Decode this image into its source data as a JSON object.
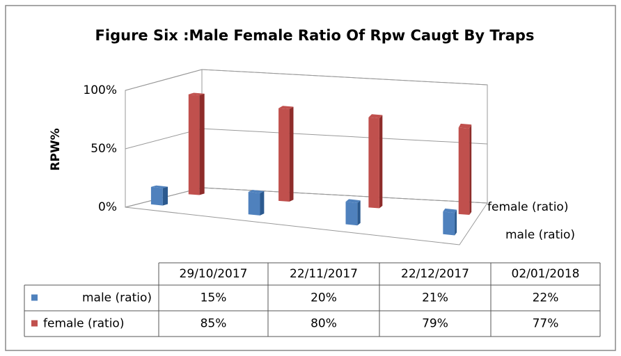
{
  "chart_data": {
    "type": "bar",
    "title": "Figure Six :Male Female Ratio Of Rpw Caugt By Traps",
    "y_label": "RPW%",
    "categories": [
      "29/10/2017",
      "22/11/2017",
      "22/12/2017",
      "02/01/2018"
    ],
    "series": [
      {
        "name": "male (ratio)",
        "color": "#4f81bd",
        "values": [
          15,
          20,
          21,
          22
        ],
        "value_labels": [
          "15%",
          "20%",
          "21%",
          "22%"
        ]
      },
      {
        "name": "female (ratio)",
        "color": "#c0504d",
        "values": [
          85,
          80,
          79,
          77
        ],
        "value_labels": [
          "85%",
          "80%",
          "79%",
          "77%"
        ]
      }
    ],
    "ylim": [
      0,
      100
    ],
    "yticks": [
      {
        "value": 0,
        "label": "0%"
      },
      {
        "value": 50,
        "label": "50%"
      },
      {
        "value": 100,
        "label": "100%"
      }
    ],
    "grid": true
  }
}
